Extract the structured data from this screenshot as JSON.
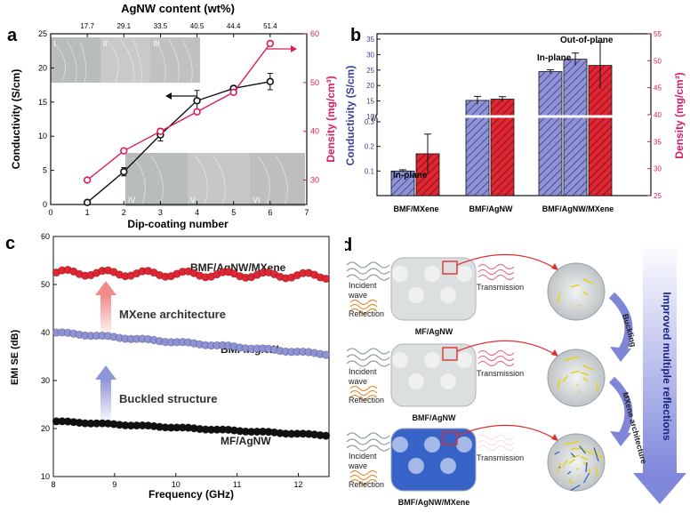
{
  "colors": {
    "black": "#111111",
    "pink": "#d81b60",
    "blue": "#8e92d6",
    "red": "#e02633",
    "grey": "#9aa0a6",
    "arrow_red": "#e03030",
    "fade_blue": "#7f86d8"
  },
  "panels": {
    "a": {
      "letter": "a",
      "top_axis_title": "AgNW content (wt%)",
      "top_ticks": [
        "17.7",
        "29.1",
        "33.5",
        "40.5",
        "44.4",
        "51.4"
      ],
      "xlabel": "Dip-coating number",
      "ylabel_left": "Conductivity (S/cm)",
      "ylabel_right": "Density (mg/cm³)",
      "inset_labels": [
        "I",
        "II",
        "III",
        "IV",
        "V",
        "VI"
      ]
    },
    "b": {
      "letter": "b",
      "ylabel_left": "Conductivity (S/cm)",
      "ylabel_right": "Density (mg/cm³)",
      "annotations": {
        "inplane_1": "In-plane",
        "inplane_3": "In-plane",
        "outplane": "Out-of-plane"
      }
    },
    "c": {
      "letter": "c",
      "xlabel": "Frequency (GHz)",
      "ylabel": "EMI SE (dB)",
      "label_top": "BMF/AgNW/MXene",
      "label_mid": "BMF/AgNW",
      "label_bot": "MF/AgNW",
      "arrow_top_text": "MXene architecture",
      "arrow_bot_text": "Buckled structure"
    },
    "d": {
      "letter": "d",
      "rows": [
        {
          "incident": "Incident\nwave",
          "reflection": "Reflection",
          "transmission": "Transmission",
          "name": "MF/AgNW"
        },
        {
          "incident": "Incident\nwave",
          "reflection": "Reflection",
          "transmission": "Transmission",
          "name": "BMF/AgNW"
        },
        {
          "incident": "Incident\nwave",
          "reflection": "Reflection",
          "transmission": "Transmission",
          "name": "BMF/AgNW/MXene"
        }
      ],
      "step1": "Buckling",
      "step2": "MXene architecture",
      "big_arrow": "Improved multiple reflections"
    }
  },
  "chart_data": [
    {
      "panel": "a",
      "type": "line",
      "x": [
        1,
        2,
        3,
        4,
        5,
        6
      ],
      "xlim": [
        0,
        7
      ],
      "xticks": [
        0,
        1,
        2,
        3,
        4,
        5,
        6,
        7
      ],
      "series": [
        {
          "axis": "left",
          "color": "#111111",
          "values": [
            0.3,
            4.8,
            10.2,
            15.2,
            17.0,
            18.0
          ],
          "errors": [
            0.3,
            0.6,
            0.9,
            1.5,
            0.4,
            1.2
          ]
        },
        {
          "axis": "right",
          "color": "#d81b60",
          "values": [
            30,
            36,
            40,
            44,
            48,
            58
          ]
        }
      ],
      "ylim_left": [
        0,
        25
      ],
      "yticks_left": [
        0,
        5,
        10,
        15,
        20,
        25
      ],
      "ylim_right": [
        25,
        60
      ],
      "yticks_right": [
        30,
        40,
        50,
        60
      ]
    },
    {
      "panel": "b",
      "type": "bar",
      "categories": [
        "BMF/MXene",
        "BMF/AgNW",
        "BMF/AgNW/MXene"
      ],
      "bars": [
        {
          "group": 0,
          "kind": "blue",
          "value": 0.1,
          "err": 0.005
        },
        {
          "group": 0,
          "kind": "red",
          "value": 0.17,
          "err": 0.08
        },
        {
          "group": 1,
          "kind": "blue",
          "value": 15.2,
          "err": 1.3
        },
        {
          "group": 1,
          "kind": "red",
          "value": 15.6,
          "err": 0.8
        },
        {
          "group": 2,
          "kind": "blue",
          "value": 24.5,
          "err": 0.6
        },
        {
          "group": 2,
          "kind": "blue",
          "value": 28.5,
          "err": 2.0
        },
        {
          "group": 2,
          "kind": "red",
          "value": 26.5,
          "err": 7.5
        }
      ],
      "yticks_left_top": [
        10,
        15,
        20,
        25,
        30,
        35
      ],
      "yticks_left_bottom": [
        0.1,
        0.2,
        0.3
      ],
      "ylim_right": [
        25,
        55
      ],
      "yticks_right": [
        25,
        30,
        35,
        40,
        45,
        50,
        55
      ]
    },
    {
      "panel": "c",
      "type": "line",
      "xlim": [
        8,
        12.5
      ],
      "xticks": [
        8,
        9,
        10,
        11,
        12
      ],
      "ylim": [
        10,
        60
      ],
      "yticks": [
        10,
        20,
        30,
        40,
        50,
        60
      ],
      "series": [
        {
          "name": "BMF/AgNW/MXene",
          "color": "#e02633",
          "start": 52.5,
          "end": 51.8,
          "wave": 0.6
        },
        {
          "name": "BMF/AgNW",
          "color": "#8e92d6",
          "start": 40.0,
          "end": 35.5,
          "wave": 0.15
        },
        {
          "name": "MF/AgNW",
          "color": "#111111",
          "start": 21.5,
          "end": 18.6,
          "wave": 0.1
        }
      ]
    }
  ]
}
